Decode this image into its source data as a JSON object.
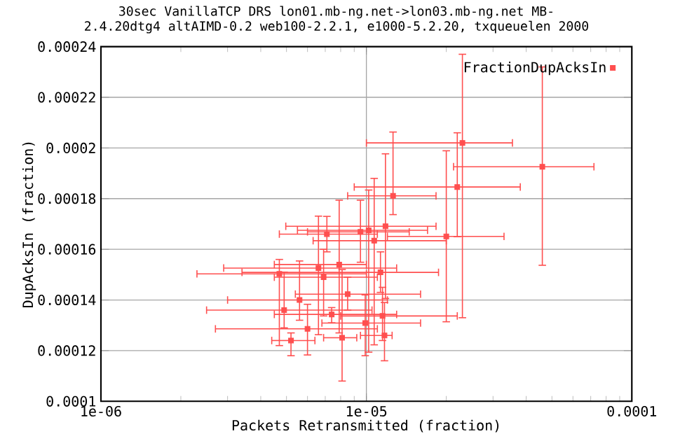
{
  "chart_data": {
    "type": "scatter",
    "title": "30sec VanillaTCP DRS lon01.mb-ng.net->lon03.mb-ng.net MB-",
    "subtitle": "2.4.20dtg4 altAIMD-0.2 web100-2.2.1, e1000-5.2.20, txqueuelen 2000",
    "xlabel": "Packets Retransmitted (fraction)",
    "ylabel": "DupAcksIn (fraction)",
    "log": "x",
    "grid": true,
    "legend": "top right",
    "marker": "square",
    "xlim": [
      1e-06,
      0.0001
    ],
    "xticks": [
      {
        "value": 1e-06,
        "label": "1e-06"
      },
      {
        "value": 1e-05,
        "label": "1e-05"
      },
      {
        "value": 0.0001,
        "label": "0.0001"
      }
    ],
    "ylim": [
      0.0001,
      0.00024
    ],
    "yticks": [
      0.0001,
      0.00012,
      0.00014,
      0.00016,
      0.00018,
      0.0002,
      0.00022,
      0.00024
    ],
    "series": [
      {
        "name": "FractionDupAcksIn",
        "color": "#ff4f4f",
        "x": [
          2.3e-05,
          4.6e-05,
          2.2e-05,
          2e-05,
          1.26e-05,
          1.18e-05,
          9.5e-06,
          1.02e-05,
          1.07e-05,
          7.1e-06,
          6.6e-06,
          1.13e-05,
          6.9e-06,
          4.7e-06,
          5.6e-06,
          4.9e-06,
          6e-06,
          5.2e-06,
          8.1e-06,
          8.5e-06,
          9.9e-06,
          1.17e-05,
          7.4e-06,
          7.9e-06,
          1.15e-05
        ],
        "values": [
          0.000202,
          0.0001926,
          0.0001846,
          0.0001651,
          0.0001811,
          0.0001691,
          0.0001669,
          0.0001675,
          0.0001634,
          0.000166,
          0.0001526,
          0.0001509,
          0.000149,
          0.0001503,
          0.00014,
          0.000136,
          0.0001286,
          0.000124,
          0.0001251,
          0.0001423,
          0.0001309,
          0.000126,
          0.0001343,
          0.000154,
          0.0001337
        ],
        "errors": [
          [
            0.000133,
            0.000237
          ],
          [
            0.0001537,
            0.000232
          ],
          [
            0.000165,
            0.000206
          ],
          [
            0.0001314,
            0.0001989
          ],
          [
            0.0001737,
            0.0002063
          ],
          [
            0.0001406,
            0.0001977
          ],
          [
            0.0001549,
            0.0001794
          ],
          [
            0.0001194,
            0.0001834
          ],
          [
            0.0001223,
            0.000188
          ],
          [
            0.000159,
            0.000173
          ],
          [
            0.0001263,
            0.0001731
          ],
          [
            0.000143,
            0.000159
          ],
          [
            0.0001337,
            0.00016
          ],
          [
            0.000122,
            0.000156
          ],
          [
            0.000132,
            0.0001554
          ],
          [
            0.000129,
            0.000151
          ],
          [
            0.0001183,
            0.0001383
          ],
          [
            0.000118,
            0.000127
          ],
          [
            0.000108,
            0.000152
          ],
          [
            0.000136,
            0.000149
          ],
          [
            0.000118,
            0.000142
          ],
          [
            0.000116,
            0.000139
          ],
          [
            0.000131,
            0.000137
          ],
          [
            0.000127,
            0.0001794
          ],
          [
            0.000124,
            0.000145
          ]
        ],
        "xerrors": [
          [
            1e-05,
            3.55e-05
          ],
          [
            2.13e-05,
            7.2e-05
          ],
          [
            9e-06,
            3.8e-05
          ],
          [
            1.2e-05,
            3.3e-05
          ],
          [
            8.5e-06,
            1.83e-05
          ],
          [
            4.97e-06,
            1.83e-05
          ],
          [
            6e-06,
            1.45e-05
          ],
          [
            5.5e-06,
            1.7e-05
          ],
          [
            6.3e-06,
            2e-05
          ],
          [
            4.7e-06,
            1.1e-05
          ],
          [
            2.9e-06,
            1.3e-05
          ],
          [
            3.4e-06,
            1.87e-05
          ],
          [
            4.5e-06,
            1.1e-05
          ],
          [
            2.3e-06,
            1e-05
          ],
          [
            3e-06,
            1.2e-05
          ],
          [
            2.5e-06,
            1.05e-05
          ],
          [
            2.7e-06,
            1.1e-05
          ],
          [
            4.4e-06,
            6.4e-06
          ],
          [
            6.9e-06,
            9.2e-06
          ],
          [
            5.4e-06,
            1.6e-05
          ],
          [
            6.8e-06,
            1.6e-05
          ],
          [
            9.5e-06,
            1.25e-05
          ],
          [
            4.5e-06,
            1.3e-05
          ],
          [
            4.5e-06,
            1e-05
          ],
          [
            8e-06,
            2.2e-05
          ]
        ]
      }
    ]
  }
}
